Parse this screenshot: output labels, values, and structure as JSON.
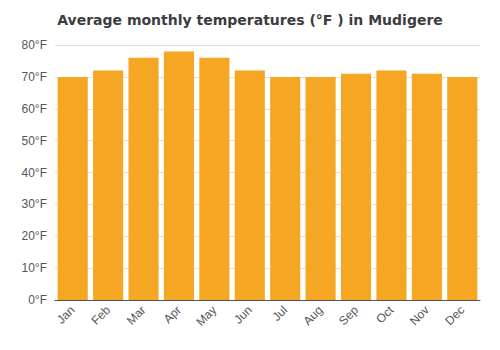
{
  "chart_data": {
    "type": "bar",
    "title": "Average monthly temperatures (°F ) in Mudigere",
    "categories": [
      "Jan",
      "Feb",
      "Mar",
      "Apr",
      "May",
      "Jun",
      "Jul",
      "Aug",
      "Sep",
      "Oct",
      "Nov",
      "Dec"
    ],
    "values": [
      70,
      72,
      76,
      78,
      76,
      72,
      70,
      70,
      71,
      72,
      71,
      70
    ],
    "color": "#F5A623",
    "ylim": [
      0,
      80
    ],
    "yticks": [
      {
        "value": 0,
        "label": "0°F"
      },
      {
        "value": 10,
        "label": "10°F"
      },
      {
        "value": 20,
        "label": "20°F"
      },
      {
        "value": 30,
        "label": "30°F"
      },
      {
        "value": 40,
        "label": "40°F"
      },
      {
        "value": 50,
        "label": "50°F"
      },
      {
        "value": 60,
        "label": "60°F"
      },
      {
        "value": 70,
        "label": "70°F"
      },
      {
        "value": 80,
        "label": "80°F"
      }
    ],
    "grid": true
  }
}
